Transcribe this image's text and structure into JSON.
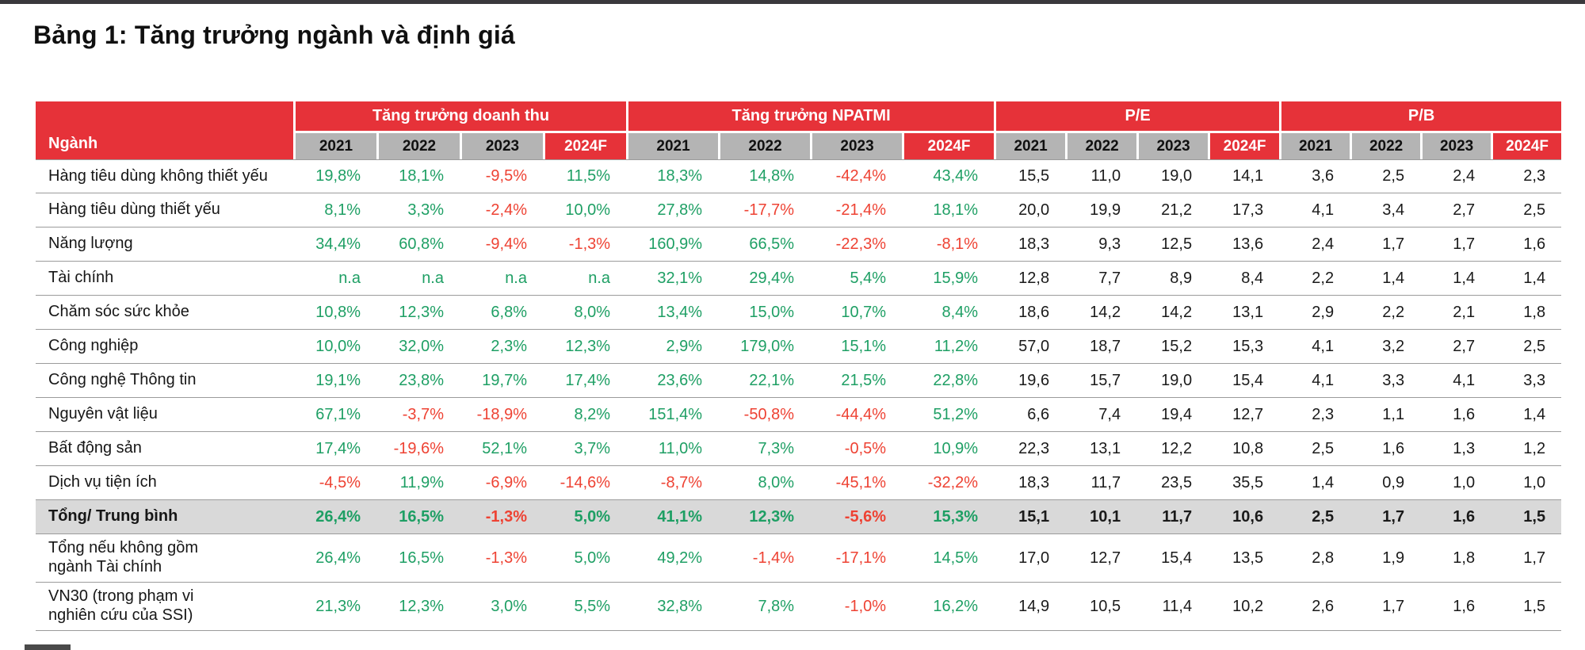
{
  "page": {
    "title": "Bảng 1: Tăng trưởng ngành và định giá"
  },
  "colors": {
    "brand_red": "#e63239",
    "header_gray": "#b4b4b4",
    "total_row_bg": "#d9d9d9",
    "positive": "#1e9f64",
    "negative": "#ee4233"
  },
  "table": {
    "first_col_header": "Ngành",
    "groups": [
      {
        "label": "Tăng trưởng doanh thu"
      },
      {
        "label": "Tăng trưởng NPATMI"
      },
      {
        "label": "P/E"
      },
      {
        "label": "P/B"
      }
    ],
    "year_headers": [
      "2021",
      "2022",
      "2023",
      "2024F"
    ],
    "rows": [
      {
        "label": "Hàng tiêu dùng không thiết yếu",
        "style": "normal",
        "revenue": [
          "19,8%",
          "18,1%",
          "-9,5%",
          "11,5%"
        ],
        "npatmi": [
          "18,3%",
          "14,8%",
          "-42,4%",
          "43,4%"
        ],
        "pe": [
          "15,5",
          "11,0",
          "19,0",
          "14,1"
        ],
        "pb": [
          "3,6",
          "2,5",
          "2,4",
          "2,3"
        ]
      },
      {
        "label": "Hàng tiêu dùng thiết yếu",
        "style": "normal",
        "revenue": [
          "8,1%",
          "3,3%",
          "-2,4%",
          "10,0%"
        ],
        "npatmi": [
          "27,8%",
          "-17,7%",
          "-21,4%",
          "18,1%"
        ],
        "pe": [
          "20,0",
          "19,9",
          "21,2",
          "17,3"
        ],
        "pb": [
          "4,1",
          "3,4",
          "2,7",
          "2,5"
        ]
      },
      {
        "label": "Năng lượng",
        "style": "normal",
        "revenue": [
          "34,4%",
          "60,8%",
          "-9,4%",
          "-1,3%"
        ],
        "npatmi": [
          "160,9%",
          "66,5%",
          "-22,3%",
          "-8,1%"
        ],
        "pe": [
          "18,3",
          "9,3",
          "12,5",
          "13,6"
        ],
        "pb": [
          "2,4",
          "1,7",
          "1,7",
          "1,6"
        ]
      },
      {
        "label": "Tài chính",
        "style": "normal",
        "revenue": [
          "n.a",
          "n.a",
          "n.a",
          "n.a"
        ],
        "npatmi": [
          "32,1%",
          "29,4%",
          "5,4%",
          "15,9%"
        ],
        "pe": [
          "12,8",
          "7,7",
          "8,9",
          "8,4"
        ],
        "pb": [
          "2,2",
          "1,4",
          "1,4",
          "1,4"
        ]
      },
      {
        "label": "Chăm sóc sức khỏe",
        "style": "normal",
        "revenue": [
          "10,8%",
          "12,3%",
          "6,8%",
          "8,0%"
        ],
        "npatmi": [
          "13,4%",
          "15,0%",
          "10,7%",
          "8,4%"
        ],
        "pe": [
          "18,6",
          "14,2",
          "14,2",
          "13,1"
        ],
        "pb": [
          "2,9",
          "2,2",
          "2,1",
          "1,8"
        ]
      },
      {
        "label": "Công nghiệp",
        "style": "normal",
        "revenue": [
          "10,0%",
          "32,0%",
          "2,3%",
          "12,3%"
        ],
        "npatmi": [
          "2,9%",
          "179,0%",
          "15,1%",
          "11,2%"
        ],
        "pe": [
          "57,0",
          "18,7",
          "15,2",
          "15,3"
        ],
        "pb": [
          "4,1",
          "3,2",
          "2,7",
          "2,5"
        ]
      },
      {
        "label": "Công nghệ Thông tin",
        "style": "normal",
        "revenue": [
          "19,1%",
          "23,8%",
          "19,7%",
          "17,4%"
        ],
        "npatmi": [
          "23,6%",
          "22,1%",
          "21,5%",
          "22,8%"
        ],
        "pe": [
          "19,6",
          "15,7",
          "19,0",
          "15,4"
        ],
        "pb": [
          "4,1",
          "3,3",
          "4,1",
          "3,3"
        ]
      },
      {
        "label": "Nguyên vật liệu",
        "style": "normal",
        "revenue": [
          "67,1%",
          "-3,7%",
          "-18,9%",
          "8,2%"
        ],
        "npatmi": [
          "151,4%",
          "-50,8%",
          "-44,4%",
          "51,2%"
        ],
        "pe": [
          "6,6",
          "7,4",
          "19,4",
          "12,7"
        ],
        "pb": [
          "2,3",
          "1,1",
          "1,6",
          "1,4"
        ]
      },
      {
        "label": "Bất động sản",
        "style": "normal",
        "revenue": [
          "17,4%",
          "-19,6%",
          "52,1%",
          "3,7%"
        ],
        "npatmi": [
          "11,0%",
          "7,3%",
          "-0,5%",
          "10,9%"
        ],
        "pe": [
          "22,3",
          "13,1",
          "12,2",
          "10,8"
        ],
        "pb": [
          "2,5",
          "1,6",
          "1,3",
          "1,2"
        ]
      },
      {
        "label": "Dịch vụ tiện ích",
        "style": "normal",
        "revenue": [
          "-4,5%",
          "11,9%",
          "-6,9%",
          "-14,6%"
        ],
        "npatmi": [
          "-8,7%",
          "8,0%",
          "-45,1%",
          "-32,2%"
        ],
        "pe": [
          "18,3",
          "11,7",
          "23,5",
          "35,5"
        ],
        "pb": [
          "1,4",
          "0,9",
          "1,0",
          "1,0"
        ]
      },
      {
        "label": "Tổng/ Trung bình",
        "style": "total",
        "revenue": [
          "26,4%",
          "16,5%",
          "-1,3%",
          "5,0%"
        ],
        "npatmi": [
          "41,1%",
          "12,3%",
          "-5,6%",
          "15,3%"
        ],
        "pe": [
          "15,1",
          "10,1",
          "11,7",
          "10,6"
        ],
        "pb": [
          "2,5",
          "1,7",
          "1,6",
          "1,5"
        ]
      },
      {
        "label": "Tổng nếu không gồm\nngành Tài chính",
        "style": "tall",
        "revenue": [
          "26,4%",
          "16,5%",
          "-1,3%",
          "5,0%"
        ],
        "npatmi": [
          "49,2%",
          "-1,4%",
          "-17,1%",
          "14,5%"
        ],
        "pe": [
          "17,0",
          "12,7",
          "15,4",
          "13,5"
        ],
        "pb": [
          "2,8",
          "1,9",
          "1,8",
          "1,7"
        ]
      },
      {
        "label": "VN30 (trong phạm vi\nnghiên cứu của SSI)",
        "style": "tall",
        "revenue": [
          "21,3%",
          "12,3%",
          "3,0%",
          "5,5%"
        ],
        "npatmi": [
          "32,8%",
          "7,8%",
          "-1,0%",
          "16,2%"
        ],
        "pe": [
          "14,9",
          "10,5",
          "11,4",
          "10,2"
        ],
        "pb": [
          "2,6",
          "1,7",
          "1,6",
          "1,5"
        ]
      }
    ]
  }
}
